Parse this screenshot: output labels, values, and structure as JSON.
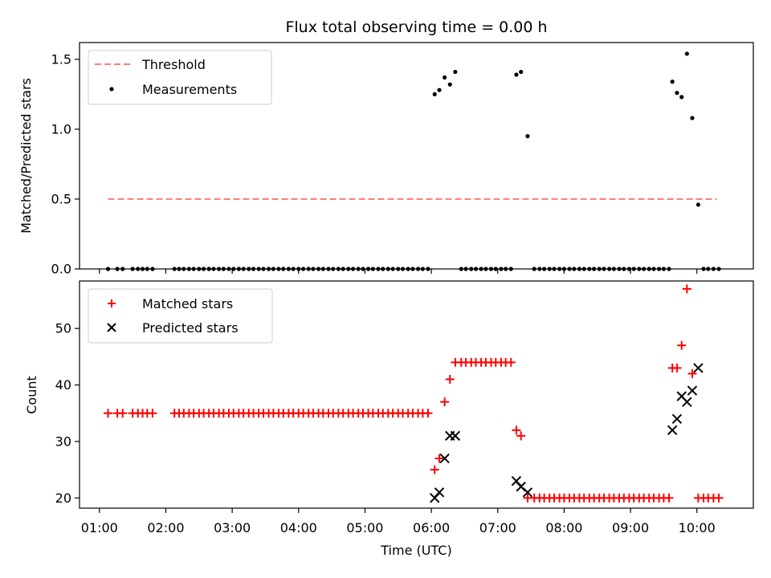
{
  "title": "Flux total observing time = 0.00 h",
  "chart_data": [
    {
      "type": "scatter",
      "panel": "top",
      "title": "Flux total observing time = 0.00 h",
      "ylabel": "Matched/Predicted stars",
      "xlabel": "",
      "ylim": [
        0,
        1.62
      ],
      "yticks": [
        0.0,
        0.5,
        1.0,
        1.5
      ],
      "ytick_labels": [
        "0.0",
        "0.5",
        "1.0",
        "1.5"
      ],
      "x_unit": "hours (UTC)",
      "xlim": [
        0.7,
        10.85
      ],
      "legend_position": "top-left",
      "threshold": {
        "name": "Threshold",
        "value": 0.5,
        "x_range": [
          1.13,
          10.3
        ],
        "color": "#ff7f7f"
      },
      "series": [
        {
          "name": "Measurements",
          "color": "#000000",
          "marker": "dot",
          "x": [
            1.13,
            1.27,
            1.35,
            1.5,
            1.58,
            1.65,
            1.72,
            1.8,
            2.13,
            2.2,
            2.27,
            2.35,
            2.42,
            2.5,
            2.57,
            2.65,
            2.72,
            2.8,
            2.87,
            2.95,
            3.02,
            3.1,
            3.17,
            3.25,
            3.32,
            3.4,
            3.47,
            3.55,
            3.62,
            3.7,
            3.77,
            3.85,
            3.92,
            4.0,
            4.07,
            4.15,
            4.22,
            4.3,
            4.37,
            4.45,
            4.52,
            4.6,
            4.67,
            4.75,
            4.82,
            4.9,
            4.97,
            5.05,
            5.12,
            5.2,
            5.27,
            5.35,
            5.42,
            5.5,
            5.57,
            5.65,
            5.72,
            5.8,
            5.87,
            5.95,
            6.05,
            6.12,
            6.2,
            6.28,
            6.36,
            6.45,
            6.52,
            6.6,
            6.67,
            6.75,
            6.82,
            6.9,
            6.97,
            7.05,
            7.12,
            7.2,
            7.28,
            7.35,
            7.45,
            7.55,
            7.63,
            7.7,
            7.78,
            7.85,
            7.93,
            8.0,
            8.08,
            8.15,
            8.23,
            8.3,
            8.38,
            8.45,
            8.53,
            8.6,
            8.68,
            8.75,
            8.83,
            8.9,
            8.98,
            9.05,
            9.13,
            9.2,
            9.28,
            9.35,
            9.43,
            9.5,
            9.58,
            9.63,
            9.7,
            9.77,
            9.85,
            9.93,
            10.02,
            10.1,
            10.17,
            10.25,
            10.33
          ],
          "y": [
            0,
            0,
            0,
            0,
            0,
            0,
            0,
            0,
            0,
            0,
            0,
            0,
            0,
            0,
            0,
            0,
            0,
            0,
            0,
            0,
            0,
            0,
            0,
            0,
            0,
            0,
            0,
            0,
            0,
            0,
            0,
            0,
            0,
            0,
            0,
            0,
            0,
            0,
            0,
            0,
            0,
            0,
            0,
            0,
            0,
            0,
            0,
            0,
            0,
            0,
            0,
            0,
            0,
            0,
            0,
            0,
            0,
            0,
            0,
            0,
            1.25,
            1.28,
            1.37,
            1.32,
            1.41,
            0,
            0,
            0,
            0,
            0,
            0,
            0,
            0,
            0,
            0,
            0,
            1.39,
            1.41,
            0.95,
            0,
            0,
            0,
            0,
            0,
            0,
            0,
            0,
            0,
            0,
            0,
            0,
            0,
            0,
            0,
            0,
            0,
            0,
            0,
            0,
            0,
            0,
            0,
            0,
            0,
            0,
            0,
            0,
            1.34,
            1.26,
            1.23,
            1.54,
            1.08,
            0.46,
            0,
            0,
            0,
            0
          ]
        }
      ]
    },
    {
      "type": "scatter",
      "panel": "bottom",
      "xlabel": "Time (UTC)",
      "ylabel": "Count",
      "ylim": [
        18.2,
        58.4
      ],
      "yticks": [
        20,
        30,
        40,
        50
      ],
      "ytick_labels": [
        "20",
        "30",
        "40",
        "50"
      ],
      "xlim": [
        0.7,
        10.85
      ],
      "xticks": [
        1,
        2,
        3,
        4,
        5,
        6,
        7,
        8,
        9,
        10
      ],
      "xtick_labels": [
        "01:00",
        "02:00",
        "03:00",
        "04:00",
        "05:00",
        "06:00",
        "07:00",
        "08:00",
        "09:00",
        "10:00"
      ],
      "legend_position": "top-left",
      "series": [
        {
          "name": "Matched stars",
          "color": "#ff0000",
          "marker": "plus",
          "x": [
            1.13,
            1.27,
            1.35,
            1.5,
            1.58,
            1.65,
            1.72,
            1.8,
            2.13,
            2.2,
            2.27,
            2.35,
            2.42,
            2.5,
            2.57,
            2.65,
            2.72,
            2.8,
            2.87,
            2.95,
            3.02,
            3.1,
            3.17,
            3.25,
            3.32,
            3.4,
            3.47,
            3.55,
            3.62,
            3.7,
            3.77,
            3.85,
            3.92,
            4.0,
            4.07,
            4.15,
            4.22,
            4.3,
            4.37,
            4.45,
            4.52,
            4.6,
            4.67,
            4.75,
            4.82,
            4.9,
            4.97,
            5.05,
            5.12,
            5.2,
            5.27,
            5.35,
            5.42,
            5.5,
            5.57,
            5.65,
            5.72,
            5.8,
            5.87,
            5.95,
            6.05,
            6.12,
            6.2,
            6.28,
            6.36,
            6.45,
            6.52,
            6.6,
            6.67,
            6.75,
            6.82,
            6.9,
            6.97,
            7.05,
            7.12,
            7.2,
            7.28,
            7.35,
            7.45,
            7.55,
            7.63,
            7.7,
            7.78,
            7.85,
            7.93,
            8.0,
            8.08,
            8.15,
            8.23,
            8.3,
            8.38,
            8.45,
            8.53,
            8.6,
            8.68,
            8.75,
            8.83,
            8.9,
            8.98,
            9.05,
            9.13,
            9.2,
            9.28,
            9.35,
            9.43,
            9.5,
            9.58,
            9.63,
            9.7,
            9.77,
            9.85,
            9.93,
            10.02,
            10.1,
            10.17,
            10.25,
            10.33
          ],
          "y": [
            35,
            35,
            35,
            35,
            35,
            35,
            35,
            35,
            35,
            35,
            35,
            35,
            35,
            35,
            35,
            35,
            35,
            35,
            35,
            35,
            35,
            35,
            35,
            35,
            35,
            35,
            35,
            35,
            35,
            35,
            35,
            35,
            35,
            35,
            35,
            35,
            35,
            35,
            35,
            35,
            35,
            35,
            35,
            35,
            35,
            35,
            35,
            35,
            35,
            35,
            35,
            35,
            35,
            35,
            35,
            35,
            35,
            35,
            35,
            35,
            25,
            27,
            37,
            41,
            44,
            44,
            44,
            44,
            44,
            44,
            44,
            44,
            44,
            44,
            44,
            44,
            32,
            31,
            20,
            20,
            20,
            20,
            20,
            20,
            20,
            20,
            20,
            20,
            20,
            20,
            20,
            20,
            20,
            20,
            20,
            20,
            20,
            20,
            20,
            20,
            20,
            20,
            20,
            20,
            20,
            20,
            20,
            43,
            43,
            47,
            57,
            42,
            20,
            20,
            20,
            20,
            20
          ]
        },
        {
          "name": "Predicted stars",
          "color": "#000000",
          "marker": "x",
          "x": [
            6.05,
            6.12,
            6.2,
            6.28,
            6.36,
            7.28,
            7.35,
            7.45,
            9.63,
            9.7,
            9.77,
            9.85,
            9.93,
            10.02
          ],
          "y": [
            20,
            21,
            27,
            31,
            31,
            23,
            22,
            21,
            32,
            34,
            38,
            37,
            39,
            43
          ]
        }
      ]
    }
  ]
}
